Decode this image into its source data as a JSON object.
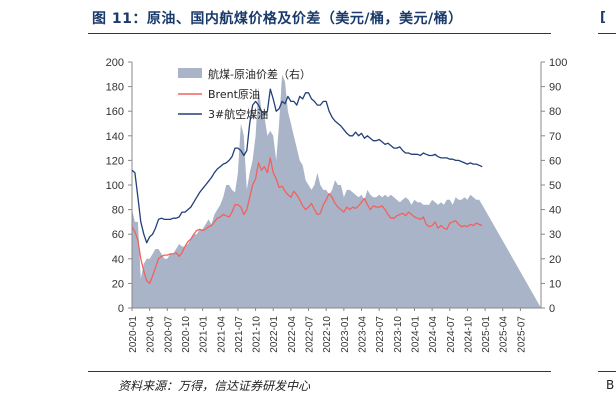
{
  "header": {
    "figure_title": "图 11：原油、国内航煤价格及价差（美元/桶，美元/桶）",
    "right_fragment": "[",
    "right_fragment_bottom": "B"
  },
  "source": "资料来源：万得，信达证券研发中心",
  "colors": {
    "spread": "#a9b4c8",
    "brent": "#f0625e",
    "jet": "#243f7a",
    "title": "#1a3a6b"
  },
  "chart_data": {
    "type": "area+line",
    "left_axis": {
      "min": 0,
      "max": 200,
      "ticks": [
        "0",
        "20",
        "40",
        "60",
        "80",
        "100",
        "120",
        "140",
        "160",
        "180",
        "200"
      ]
    },
    "right_axis": {
      "min": 0,
      "max": 100,
      "ticks": [
        "0",
        "10",
        "20",
        "30",
        "40",
        "50",
        "60",
        "70",
        "80",
        "90",
        "100"
      ]
    },
    "x_tick_labels": [
      "2020-01",
      "2020-04",
      "2020-07",
      "2020-10",
      "2021-01",
      "2021-04",
      "2021-07",
      "2021-10",
      "2022-01",
      "2022-04",
      "2022-07",
      "2022-10",
      "2023-01",
      "2023-04",
      "2023-07",
      "2023-10",
      "2024-01",
      "2024-04",
      "2024-07",
      "2024-10",
      "2025-01",
      "2025-04",
      "2025-07"
    ],
    "legend": [
      {
        "name": "航煤-原油价差（右）",
        "kind": "area",
        "color": "#a9b4c8"
      },
      {
        "name": "Brent原油",
        "kind": "line",
        "color": "#f0625e"
      },
      {
        "name": "3#航空煤油",
        "kind": "line",
        "color": "#243f7a"
      }
    ],
    "x_months": [
      0,
      0.5,
      1,
      1.5,
      2,
      2.5,
      3,
      3.5,
      4,
      4.5,
      5,
      5.5,
      6,
      6.5,
      7,
      7.5,
      8,
      8.5,
      9,
      9.5,
      10,
      10.5,
      11,
      11.5,
      12,
      12.5,
      13,
      13.5,
      14,
      14.5,
      15,
      15.5,
      16,
      16.5,
      17,
      17.5,
      18,
      18.5,
      19,
      19.5,
      20,
      20.5,
      21,
      21.5,
      22,
      22.5,
      23,
      23.5,
      24,
      24.5,
      25,
      25.5,
      26,
      26.5,
      27,
      27.5,
      28,
      28.5,
      29,
      29.5,
      30,
      30.5,
      31,
      31.5,
      32,
      32.5,
      33,
      33.5,
      34,
      34.5,
      35,
      35.5,
      36,
      36.5,
      37,
      37.5,
      38,
      38.5,
      39,
      39.5,
      40,
      40.5,
      41,
      41.5,
      42,
      42.5,
      43,
      43.5,
      44,
      44.5,
      45,
      45.5,
      46,
      46.5,
      47,
      47.5,
      48,
      48.5,
      49,
      49.5,
      50,
      50.5,
      51,
      51.5,
      52,
      52.5,
      53,
      53.5,
      54,
      54.5,
      55,
      55.5,
      56,
      56.5,
      57,
      57.5,
      58,
      58.5,
      59,
      59.5,
      60,
      60.5,
      61,
      61.5,
      62,
      62.5,
      63,
      63.5,
      64,
      64.5,
      65,
      65.5,
      66,
      66.5,
      67,
      67.5,
      68,
      68.5,
      69,
      69.5
    ],
    "series": [
      {
        "name": "Brent原油",
        "axis": "left",
        "values": [
          66,
          62,
          55,
          40,
          30,
          22,
          20,
          26,
          33,
          40,
          42,
          43,
          43,
          44,
          44,
          45,
          42,
          45,
          50,
          54,
          56,
          60,
          63,
          64,
          63,
          64,
          66,
          67,
          70,
          73,
          74,
          76,
          75,
          74,
          78,
          84,
          84,
          82,
          76,
          80,
          90,
          100,
          105,
          118,
          112,
          115,
          110,
          122,
          110,
          105,
          98,
          99,
          95,
          92,
          90,
          95,
          92,
          88,
          83,
          80,
          82,
          85,
          80,
          76,
          77,
          84,
          88,
          93,
          90,
          85,
          82,
          80,
          78,
          82,
          80,
          82,
          81,
          83,
          86,
          89,
          84,
          80,
          83,
          82,
          82,
          83,
          80,
          76,
          73,
          73,
          75,
          76,
          77,
          75,
          78,
          76,
          74,
          73,
          72,
          74,
          68,
          66,
          67,
          70,
          65,
          67,
          65,
          64,
          69,
          70,
          71,
          68,
          66,
          67,
          66,
          68,
          67,
          69,
          68,
          67
        ]
      },
      {
        "name": "3#航空煤油",
        "axis": "left",
        "values": [
          112,
          110,
          90,
          70,
          60,
          53,
          58,
          60,
          65,
          72,
          73,
          72,
          72,
          72,
          73,
          73,
          74,
          78,
          78,
          80,
          82,
          86,
          90,
          94,
          97,
          100,
          103,
          106,
          110,
          113,
          115,
          117,
          118,
          120,
          123,
          130,
          130,
          128,
          124,
          128,
          150,
          165,
          168,
          165,
          160,
          158,
          160,
          178,
          170,
          160,
          162,
          168,
          166,
          172,
          168,
          168,
          165,
          172,
          170,
          175,
          175,
          170,
          168,
          165,
          165,
          168,
          168,
          160,
          155,
          152,
          150,
          148,
          145,
          142,
          140,
          140,
          143,
          140,
          142,
          138,
          140,
          138,
          136,
          136,
          137,
          135,
          133,
          134,
          132,
          130,
          130,
          131,
          128,
          126,
          126,
          125,
          125,
          125,
          124,
          126,
          125,
          124,
          124,
          125,
          123,
          122,
          122,
          122,
          121,
          121,
          120,
          120,
          119,
          118,
          117,
          118,
          117,
          117,
          116,
          115
        ]
      },
      {
        "name": "航煤-原油价差（右）",
        "axis": "right",
        "type": "area",
        "values": [
          40,
          35,
          35,
          12,
          18,
          20,
          20,
          22,
          24,
          24,
          22,
          20,
          20,
          22,
          22,
          24,
          26,
          25,
          25,
          26,
          28,
          30,
          30,
          32,
          32,
          34,
          36,
          34,
          38,
          40,
          42,
          45,
          50,
          50,
          48,
          47,
          55,
          75,
          70,
          48,
          55,
          60,
          70,
          90,
          80,
          78,
          70,
          72,
          70,
          60,
          75,
          95,
          92,
          80,
          75,
          70,
          65,
          60,
          58,
          52,
          50,
          48,
          50,
          55,
          50,
          48,
          48,
          46,
          48,
          52,
          50,
          50,
          45,
          48,
          48,
          47,
          46,
          45,
          46,
          44,
          48,
          46,
          45,
          45,
          46,
          45,
          46,
          45,
          46,
          45,
          44,
          43,
          44,
          45,
          44,
          42,
          44,
          43,
          43,
          42,
          42,
          42,
          44,
          43,
          42,
          43,
          42,
          44,
          44,
          42,
          45,
          44,
          44,
          45,
          44,
          46,
          45,
          44,
          44,
          42
        ]
      }
    ]
  }
}
